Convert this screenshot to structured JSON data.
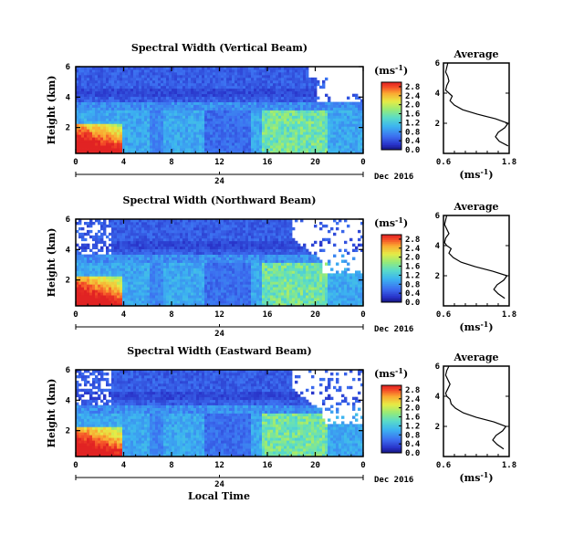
{
  "chart_data": [
    {
      "type": "heatmap",
      "title": "Spectral Width (Vertical Beam)",
      "ylabel": "Height (km)",
      "x_ticks": [
        "0",
        "4",
        "8",
        "12",
        "16",
        "20",
        "0"
      ],
      "day_label": "24",
      "date_label": "Dec 2016",
      "xlim": [
        0,
        24
      ],
      "ylim": [
        0.3,
        6.0
      ],
      "y_ticks": [
        "2",
        "4",
        "6"
      ],
      "colorbar": {
        "unit": "(ms",
        "unit_sup": "-1",
        "unit_end": ")",
        "ticks": [
          "0.0",
          "0.4",
          "0.8",
          "1.2",
          "1.6",
          "2.0",
          "2.4",
          "2.8"
        ],
        "range": [
          0,
          3.0
        ]
      },
      "profile": {
        "title": "Average",
        "xlim": [
          0.6,
          1.8
        ],
        "x_ticks": [
          "0.6",
          "1.8"
        ],
        "ylim": [
          0,
          6
        ],
        "y_ticks": [
          "2",
          "4",
          "6"
        ],
        "unit": "(ms",
        "unit_sup": "-1",
        "unit_end": ")",
        "height": [
          0.5,
          0.8,
          1.1,
          1.4,
          1.7,
          2.0,
          2.3,
          2.6,
          2.9,
          3.2,
          3.5,
          3.8,
          4.0,
          4.2,
          4.5,
          4.8,
          5.1,
          5.4,
          5.7,
          6.0
        ],
        "width": [
          1.78,
          1.62,
          1.55,
          1.6,
          1.72,
          1.78,
          1.55,
          1.22,
          0.95,
          0.8,
          0.72,
          0.76,
          0.7,
          0.64,
          0.66,
          0.7,
          0.68,
          0.64,
          0.66,
          0.68
        ]
      }
    },
    {
      "type": "heatmap",
      "title": "Spectral Width (Northward Beam)",
      "ylabel": "Height (km)",
      "x_ticks": [
        "0",
        "4",
        "8",
        "12",
        "16",
        "20",
        "0"
      ],
      "day_label": "24",
      "date_label": "Dec 2016",
      "xlim": [
        0,
        24
      ],
      "ylim": [
        0.3,
        6.0
      ],
      "y_ticks": [
        "2",
        "4",
        "6"
      ],
      "colorbar": {
        "unit": "(ms",
        "unit_sup": "-1",
        "unit_end": ")",
        "ticks": [
          "0.0",
          "0.4",
          "0.8",
          "1.2",
          "1.6",
          "2.0",
          "2.4",
          "2.8"
        ],
        "range": [
          0,
          3.0
        ]
      },
      "profile": {
        "title": "Average",
        "xlim": [
          0.6,
          1.8
        ],
        "x_ticks": [
          "0.6",
          "1.8"
        ],
        "ylim": [
          0,
          6
        ],
        "y_ticks": [
          "2",
          "4",
          "6"
        ],
        "unit": "(ms",
        "unit_sup": "-1",
        "unit_end": ")",
        "height": [
          0.5,
          0.8,
          1.1,
          1.4,
          1.7,
          2.0,
          2.3,
          2.6,
          2.9,
          3.2,
          3.5,
          3.8,
          4.0,
          4.2,
          4.5,
          4.8,
          5.1,
          5.4,
          5.7,
          6.0
        ],
        "width": [
          1.72,
          1.6,
          1.52,
          1.58,
          1.7,
          1.76,
          1.5,
          1.18,
          0.92,
          0.78,
          0.7,
          0.74,
          0.66,
          0.62,
          0.64,
          0.7,
          0.66,
          0.62,
          0.64,
          0.66
        ]
      }
    },
    {
      "type": "heatmap",
      "title": "Spectral Width (Eastward Beam)",
      "ylabel": "Height (km)",
      "x_ticks": [
        "0",
        "4",
        "8",
        "12",
        "16",
        "20",
        "0"
      ],
      "day_label": "24",
      "date_label": "Dec 2016",
      "xlim": [
        0,
        24
      ],
      "ylim": [
        0.3,
        6.0
      ],
      "y_ticks": [
        "2",
        "4",
        "6"
      ],
      "colorbar": {
        "unit": "(ms",
        "unit_sup": "-1",
        "unit_end": ")",
        "ticks": [
          "0.0",
          "0.4",
          "0.8",
          "1.2",
          "1.6",
          "2.0",
          "2.4",
          "2.8"
        ],
        "range": [
          0,
          3.0
        ]
      },
      "profile": {
        "title": "Average",
        "xlim": [
          0.6,
          1.8
        ],
        "x_ticks": [
          "0.6",
          "1.8"
        ],
        "ylim": [
          0,
          6
        ],
        "y_ticks": [
          "2",
          "4",
          "6"
        ],
        "unit": "(ms",
        "unit_sup": "-1",
        "unit_end": ")",
        "height": [
          0.5,
          0.8,
          1.1,
          1.4,
          1.7,
          2.0,
          2.3,
          2.6,
          2.9,
          3.2,
          3.5,
          3.8,
          4.0,
          4.2,
          4.5,
          4.8,
          5.1,
          5.4,
          5.7,
          6.0
        ],
        "width": [
          1.7,
          1.58,
          1.5,
          1.56,
          1.68,
          1.74,
          1.52,
          1.2,
          0.96,
          0.82,
          0.74,
          0.72,
          0.66,
          0.64,
          0.68,
          0.72,
          0.68,
          0.64,
          0.66,
          0.7
        ]
      }
    }
  ],
  "xlabel": "Local Time"
}
